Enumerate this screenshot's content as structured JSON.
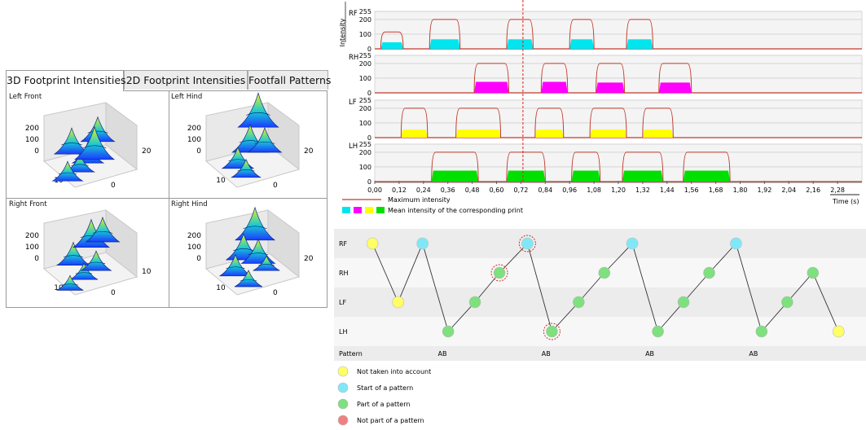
{
  "tabs": [
    "3D Footprint Intensities",
    "2D Footprint Intensities",
    "Footfall Patterns"
  ],
  "surface_panels": [
    {
      "title": "Left Front",
      "z_ticks": [
        "200",
        "100",
        "0"
      ],
      "x_tick": "10",
      "y_ticks": [
        "20",
        "0"
      ]
    },
    {
      "title": "Left Hind",
      "z_ticks": [
        "200",
        "100",
        "0"
      ],
      "x_tick": "10",
      "y_ticks": [
        "20",
        "0"
      ]
    },
    {
      "title": "Right Front",
      "z_ticks": [
        "200",
        "100",
        "0"
      ],
      "x_tick": "10",
      "y_ticks": [
        "10",
        "0"
      ]
    },
    {
      "title": "Right Hind",
      "z_ticks": [
        "200",
        "100",
        "0"
      ],
      "x_tick": "10",
      "y_ticks": [
        "20",
        "0"
      ]
    }
  ],
  "chart_data": [
    {
      "type": "area",
      "ylabel": "Intensity",
      "xlabel": "Time (s)",
      "x_ticks": [
        "0,00",
        "0,12",
        "0,24",
        "0,36",
        "0,48",
        "0,60",
        "0,72",
        "0,84",
        "0,96",
        "1,08",
        "1,20",
        "1,32",
        "1,44",
        "1,56",
        "1,68",
        "1,80",
        "1,92",
        "2,04",
        "2,16",
        "2,28"
      ],
      "xlim": [
        0,
        2.4
      ],
      "y_ticks": [
        "255",
        "200",
        "100",
        "0"
      ],
      "ylim": [
        0,
        255
      ],
      "cursor_x": 0.73,
      "legend": [
        {
          "label": "Maximum intensity",
          "color": "#c0392b"
        },
        {
          "label": "Mean intensity of the corresponding print",
          "swatch_colors": [
            "#00e5ee",
            "#ff00ff",
            "#ffff00",
            "#00e000"
          ]
        }
      ],
      "tracks": [
        {
          "name": "RF",
          "color": "#00e5ee",
          "prints": [
            [
              0.03,
              0.14,
              115,
              45
            ],
            [
              0.27,
              0.42,
              200,
              65
            ],
            [
              0.65,
              0.78,
              200,
              65
            ],
            [
              0.96,
              1.08,
              200,
              65
            ],
            [
              1.24,
              1.37,
              200,
              65
            ]
          ]
        },
        {
          "name": "RH",
          "color": "#ff00ff",
          "prints": [
            [
              0.49,
              0.66,
              200,
              75
            ],
            [
              0.82,
              0.95,
              200,
              75
            ],
            [
              1.09,
              1.23,
              200,
              70
            ],
            [
              1.4,
              1.56,
              200,
              70
            ]
          ]
        },
        {
          "name": "LF",
          "color": "#ffff00",
          "prints": [
            [
              0.13,
              0.26,
              200,
              55
            ],
            [
              0.4,
              0.62,
              200,
              55
            ],
            [
              0.79,
              0.93,
              200,
              55
            ],
            [
              1.06,
              1.24,
              200,
              55
            ],
            [
              1.32,
              1.47,
              200,
              55
            ]
          ]
        },
        {
          "name": "LH",
          "color": "#00e000",
          "prints": [
            [
              0.28,
              0.51,
              200,
              75
            ],
            [
              0.65,
              0.84,
              200,
              75
            ],
            [
              0.97,
              1.11,
              200,
              75
            ],
            [
              1.22,
              1.42,
              200,
              75
            ],
            [
              1.52,
              1.75,
              200,
              75
            ]
          ]
        }
      ]
    },
    {
      "type": "scatter",
      "rows": [
        "RF",
        "RH",
        "LF",
        "LH"
      ],
      "pattern_label": "Pattern",
      "patterns": [
        "AB",
        "AB",
        "AB",
        "AB"
      ],
      "points": [
        {
          "x": 0.12,
          "row": "RF",
          "kind": "not"
        },
        {
          "x": 0.34,
          "row": "LF",
          "kind": "not"
        },
        {
          "x": 0.55,
          "row": "RF",
          "kind": "start"
        },
        {
          "x": 0.77,
          "row": "LH",
          "kind": "part"
        },
        {
          "x": 1.0,
          "row": "LF",
          "kind": "part"
        },
        {
          "x": 1.21,
          "row": "RH",
          "kind": "part",
          "circled": true
        },
        {
          "x": 1.45,
          "row": "RF",
          "kind": "start",
          "circled": true
        },
        {
          "x": 1.66,
          "row": "LH",
          "kind": "part",
          "circled": true
        },
        {
          "x": 1.89,
          "row": "LF",
          "kind": "part"
        },
        {
          "x": 2.11,
          "row": "RH",
          "kind": "part"
        },
        {
          "x": 2.35,
          "row": "RF",
          "kind": "start"
        },
        {
          "x": 2.57,
          "row": "LH",
          "kind": "part"
        },
        {
          "x": 2.79,
          "row": "LF",
          "kind": "part"
        },
        {
          "x": 3.01,
          "row": "RH",
          "kind": "part"
        },
        {
          "x": 3.24,
          "row": "RF",
          "kind": "start"
        },
        {
          "x": 3.46,
          "row": "LH",
          "kind": "part"
        },
        {
          "x": 3.68,
          "row": "LF",
          "kind": "part"
        },
        {
          "x": 3.9,
          "row": "RH",
          "kind": "part"
        },
        {
          "x": 4.12,
          "row": "LH",
          "kind": "not"
        }
      ],
      "pattern_positions": [
        0.72,
        1.61,
        2.5,
        3.39
      ],
      "xlim": [
        0,
        4.3
      ],
      "legend": [
        {
          "label": "Not taken into account",
          "kind": "not"
        },
        {
          "label": "Start of a pattern",
          "kind": "start"
        },
        {
          "label": "Part of a pattern",
          "kind": "part"
        },
        {
          "label": "Not part of a pattern",
          "kind": "notpart"
        }
      ]
    }
  ],
  "colors": {
    "not": "#ffff66",
    "start": "#7fe8f8",
    "part": "#7ee07e",
    "notpart": "#f08080",
    "max_line": "#c0392b",
    "cursor": "#dd2222",
    "band_a": "#ececec",
    "band_b": "#f7f7f7"
  }
}
